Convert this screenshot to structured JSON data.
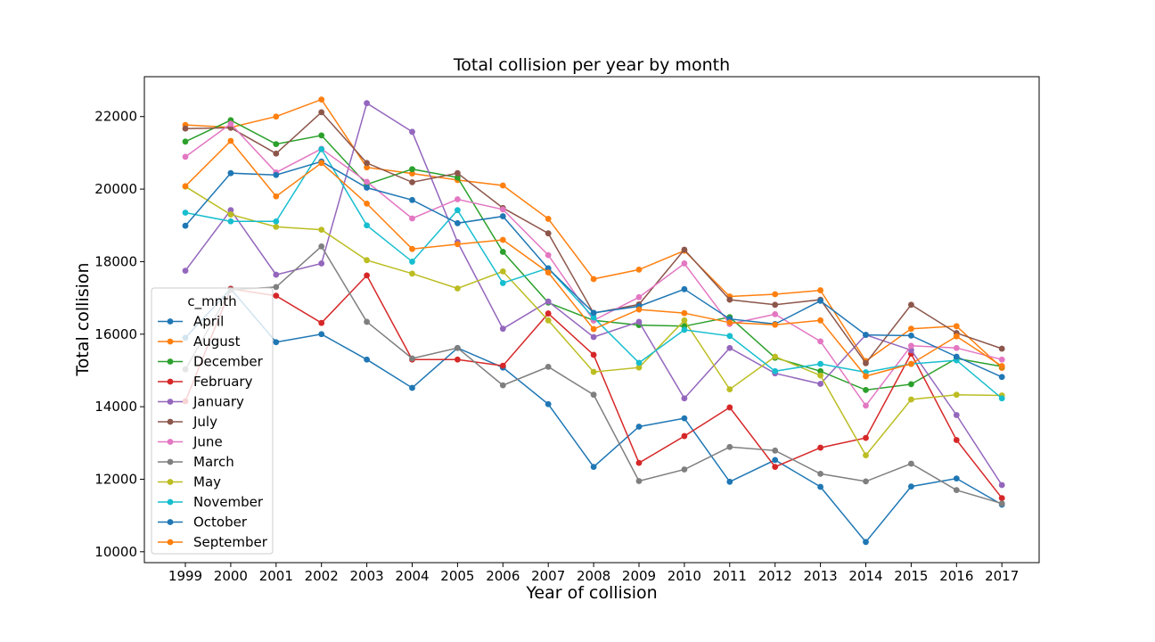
{
  "chart_data": {
    "type": "line",
    "title": "Total collision per year by month",
    "xlabel": "Year of collision",
    "ylabel": "Total collision",
    "x": [
      "1999",
      "2000",
      "2001",
      "2002",
      "2003",
      "2004",
      "2005",
      "2006",
      "2007",
      "2008",
      "2009",
      "2010",
      "2011",
      "2012",
      "2013",
      "2014",
      "2015",
      "2016",
      "2017"
    ],
    "yticks": [
      10000,
      12000,
      14000,
      16000,
      18000,
      20000,
      22000
    ],
    "ylim": [
      9700,
      23100
    ],
    "grid": false,
    "legend_title": "c_mnth",
    "legend_position": "lower-left",
    "series": [
      {
        "name": "April",
        "color": "#1f77b4",
        "values": [
          15900,
          17250,
          15780,
          16000,
          15300,
          14520,
          15620,
          15080,
          14070,
          12340,
          13450,
          13680,
          11930,
          12530,
          11790,
          10270,
          11800,
          12020,
          11300
        ]
      },
      {
        "name": "August",
        "color": "#ff7f0e",
        "values": [
          21770,
          21700,
          22000,
          22470,
          20600,
          20430,
          20250,
          20100,
          19180,
          17520,
          17780,
          18300,
          17040,
          17100,
          17210,
          15260,
          16150,
          16220,
          15070
        ]
      },
      {
        "name": "December",
        "color": "#2ca02c",
        "values": [
          21310,
          21900,
          21240,
          21480,
          20130,
          20550,
          20320,
          18270,
          16870,
          16380,
          16250,
          16220,
          16470,
          15350,
          14980,
          14460,
          14620,
          15330,
          15110
        ]
      },
      {
        "name": "February",
        "color": "#d62728",
        "values": [
          14150,
          17250,
          17060,
          16310,
          17620,
          15300,
          15300,
          15130,
          16570,
          15430,
          12450,
          13190,
          13980,
          12340,
          12870,
          13140,
          15460,
          13080,
          11480
        ]
      },
      {
        "name": "January",
        "color": "#9467bd",
        "values": [
          17750,
          19420,
          17640,
          17950,
          22370,
          21580,
          18540,
          16150,
          16900,
          15920,
          16340,
          14230,
          15620,
          14920,
          14630,
          15980,
          15560,
          13770,
          11840
        ]
      },
      {
        "name": "July",
        "color": "#8c564b",
        "values": [
          21670,
          21690,
          20980,
          22120,
          20720,
          20190,
          20440,
          19480,
          18780,
          16580,
          16820,
          18330,
          16950,
          16810,
          16950,
          15200,
          16810,
          16030,
          15600
        ]
      },
      {
        "name": "June",
        "color": "#e377c2",
        "values": [
          20890,
          21800,
          20460,
          21110,
          20200,
          19190,
          19720,
          19440,
          18180,
          16380,
          17020,
          17950,
          16280,
          16550,
          15800,
          14030,
          15680,
          15620,
          15300
        ]
      },
      {
        "name": "March",
        "color": "#7f7f7f",
        "values": [
          15030,
          17220,
          17300,
          18420,
          16340,
          15330,
          15620,
          14590,
          15100,
          14330,
          11950,
          12270,
          12890,
          12790,
          12150,
          11940,
          12430,
          11700,
          11330
        ]
      },
      {
        "name": "May",
        "color": "#bcbd22",
        "values": [
          20070,
          19300,
          18960,
          18880,
          18040,
          17670,
          17260,
          17730,
          16380,
          14960,
          15080,
          16380,
          14480,
          15380,
          14860,
          12660,
          14200,
          14330,
          14310
        ]
      },
      {
        "name": "November",
        "color": "#17becf",
        "values": [
          19350,
          19110,
          19110,
          21100,
          19000,
          18000,
          19420,
          17410,
          17820,
          16460,
          15210,
          16120,
          15950,
          14980,
          15180,
          14950,
          15180,
          15280,
          14230
        ]
      },
      {
        "name": "October",
        "color": "#1f77b4",
        "values": [
          18990,
          20440,
          20390,
          20760,
          20040,
          19700,
          19060,
          19250,
          17810,
          16590,
          16770,
          17240,
          16420,
          16280,
          16920,
          15980,
          15960,
          15380,
          14820
        ]
      },
      {
        "name": "September",
        "color": "#ff7f0e",
        "values": [
          20080,
          21330,
          19800,
          20720,
          19600,
          18350,
          18480,
          18600,
          17700,
          16140,
          16680,
          16580,
          16320,
          16260,
          16380,
          14840,
          15180,
          15940,
          15120
        ]
      }
    ]
  }
}
